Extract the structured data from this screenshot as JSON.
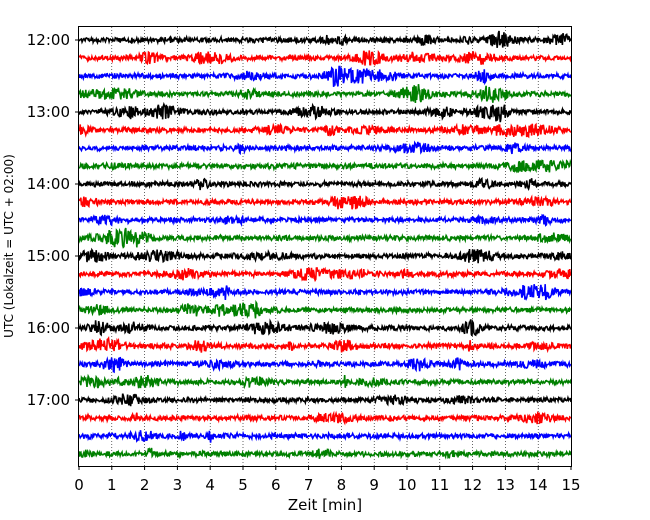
{
  "chart_data": {
    "type": "line",
    "xlabel": "Zeit  [min]",
    "ylabel": "UTC (Lokalzeit = UTC + 02:00)",
    "xlim": [
      0,
      15
    ],
    "x_ticks": [
      "0",
      "1",
      "2",
      "3",
      "4",
      "5",
      "6",
      "7",
      "8",
      "9",
      "10",
      "11",
      "12",
      "13",
      "14",
      "15"
    ],
    "y_ticks": [
      "12:00",
      "13:00",
      "14:00",
      "15:00",
      "16:00",
      "17:00"
    ],
    "grid": "vertical dotted",
    "trace_interval_minutes": 15,
    "trace_colors": [
      "#000000",
      "#ff0000",
      "#0000ff",
      "#008000"
    ],
    "traces": [
      {
        "start": "12:00",
        "color": "#000000"
      },
      {
        "start": "12:15",
        "color": "#ff0000"
      },
      {
        "start": "12:30",
        "color": "#0000ff"
      },
      {
        "start": "12:45",
        "color": "#008000"
      },
      {
        "start": "13:00",
        "color": "#000000"
      },
      {
        "start": "13:15",
        "color": "#ff0000"
      },
      {
        "start": "13:30",
        "color": "#0000ff"
      },
      {
        "start": "13:45",
        "color": "#008000"
      },
      {
        "start": "14:00",
        "color": "#000000"
      },
      {
        "start": "14:15",
        "color": "#ff0000"
      },
      {
        "start": "14:30",
        "color": "#0000ff"
      },
      {
        "start": "14:45",
        "color": "#008000"
      },
      {
        "start": "15:00",
        "color": "#000000"
      },
      {
        "start": "15:15",
        "color": "#ff0000"
      },
      {
        "start": "15:30",
        "color": "#0000ff"
      },
      {
        "start": "15:45",
        "color": "#008000"
      },
      {
        "start": "16:00",
        "color": "#000000"
      },
      {
        "start": "16:15",
        "color": "#ff0000"
      },
      {
        "start": "16:30",
        "color": "#0000ff"
      },
      {
        "start": "16:45",
        "color": "#008000"
      },
      {
        "start": "17:00",
        "color": "#000000"
      },
      {
        "start": "17:15",
        "color": "#ff0000"
      },
      {
        "start": "17:30",
        "color": "#0000ff"
      },
      {
        "start": "17:45",
        "color": "#008000"
      }
    ]
  }
}
